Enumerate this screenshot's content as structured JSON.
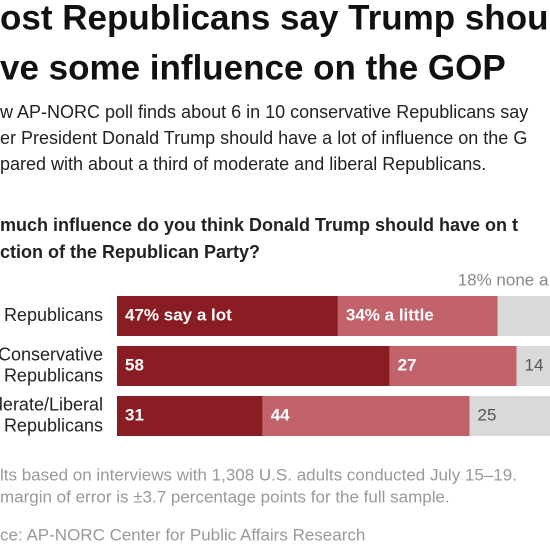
{
  "chart_data": {
    "type": "bar",
    "orientation": "horizontal",
    "stacked": true,
    "title": [
      "ost Republicans say Trump shou",
      "ve some influence on the GOP"
    ],
    "subtitle": [
      "w AP-NORC poll finds about 6 in 10 conservative Republicans say",
      "er President Donald Trump should have a lot of influence on the G",
      "pared with about a third of moderate and liberal Republicans."
    ],
    "question": [
      "much influence do you think Donald Trump should have on t",
      "ction of the Republican Party?"
    ],
    "categories": [
      [
        "Republicans"
      ],
      [
        "Conservative",
        "Republicans"
      ],
      [
        "oderate/Liberal",
        "Republicans"
      ]
    ],
    "series": [
      {
        "color": "#8a1c24",
        "values": [
          47,
          58,
          31
        ],
        "value_labels": [
          "47% say a lot",
          "58",
          "31"
        ]
      },
      {
        "color": "#c2626a",
        "values": [
          34,
          27,
          44
        ],
        "value_labels": [
          "34% a little",
          "27",
          "44"
        ]
      },
      {
        "color": "#d9d9d9",
        "values": [
          18,
          14,
          25
        ],
        "value_labels": [
          "18% none a",
          "14",
          "25"
        ]
      }
    ],
    "xlim": [
      0,
      100
    ],
    "notes": [
      "lts based on interviews with 1,308 U.S. adults conducted July 15–19.",
      "margin of error is ±3.7 percentage points for the full sample."
    ],
    "source": "ce: AP-NORC Center for Public Affairs Research"
  }
}
